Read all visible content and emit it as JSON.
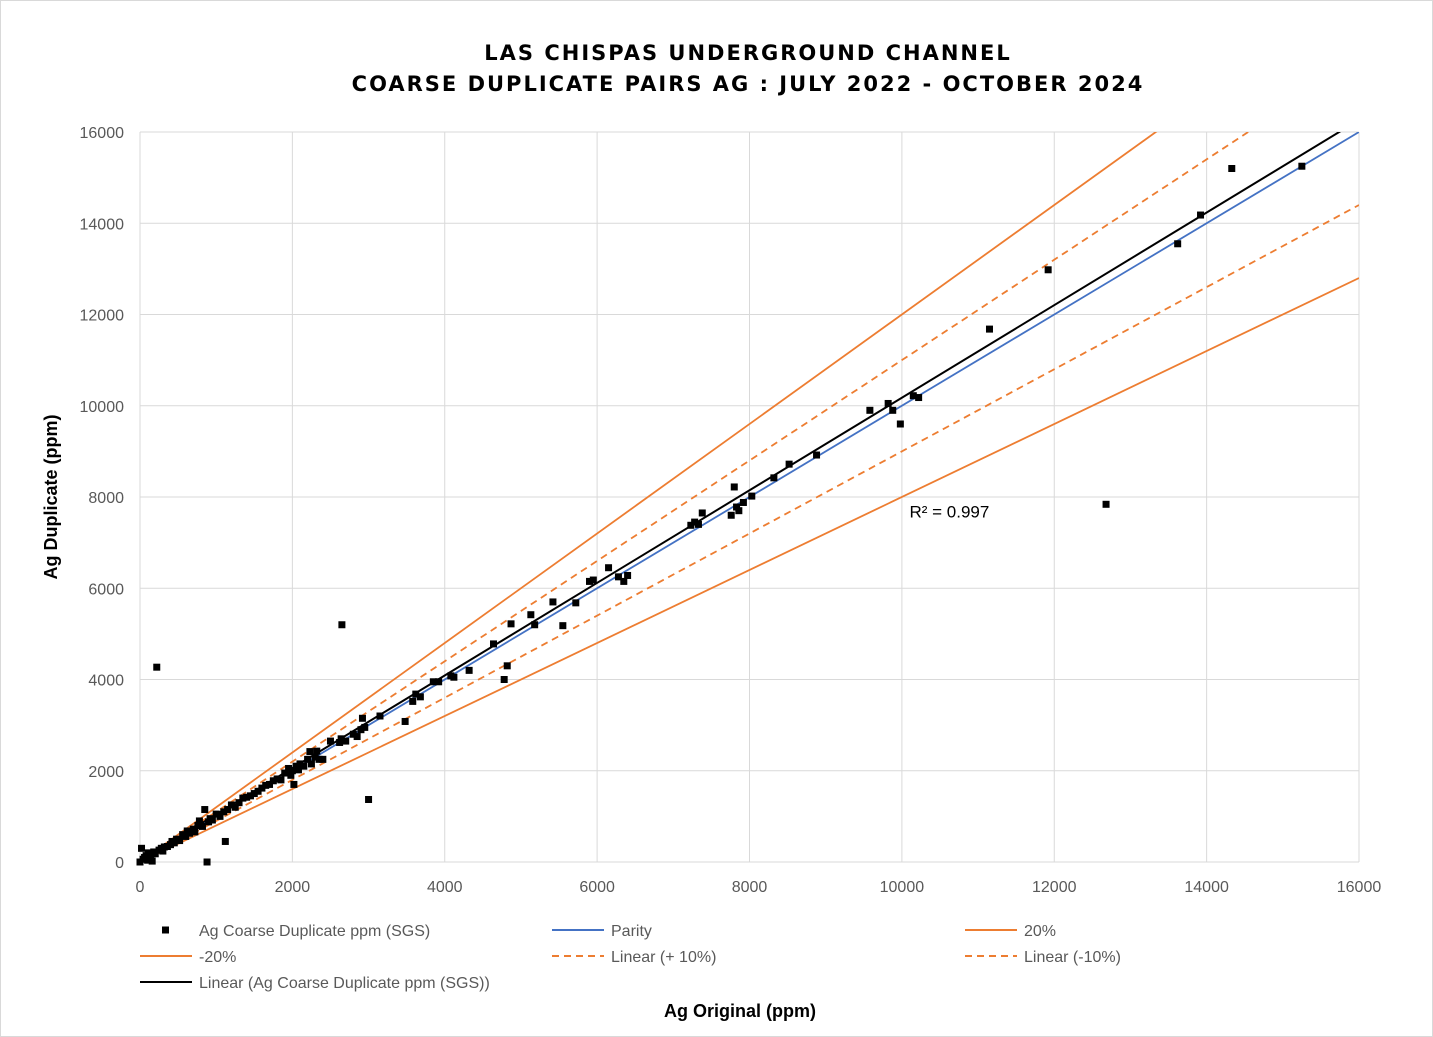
{
  "chart_data": {
    "type": "scatter",
    "title": [
      "LAS CHISPAS UNDERGROUND CHANNEL",
      "COARSE DUPLICATE PAIRS AG : JULY 2022 - OCTOBER 2024"
    ],
    "xlabel": "Ag Original (ppm)",
    "ylabel": "Ag Duplicate (ppm)",
    "xlim": [
      0,
      16000
    ],
    "ylim": [
      0,
      16000
    ],
    "xticks": [
      "0",
      "2000",
      "4000",
      "6000",
      "8000",
      "10000",
      "12000",
      "14000",
      "16000"
    ],
    "yticks": [
      "0",
      "2000",
      "4000",
      "6000",
      "8000",
      "10000",
      "12000",
      "14000",
      "16000"
    ],
    "grid": true,
    "annotation": {
      "text": "R² = 0.997",
      "x": 10100,
      "y": 7550
    },
    "series": [
      {
        "name": "Ag Coarse Duplicate ppm (SGS)",
        "kind": "scatter",
        "color": "#000000",
        "points": [
          [
            0,
            0
          ],
          [
            20,
            300
          ],
          [
            40,
            60
          ],
          [
            60,
            100
          ],
          [
            80,
            140
          ],
          [
            100,
            40
          ],
          [
            110,
            200
          ],
          [
            130,
            110
          ],
          [
            140,
            160
          ],
          [
            160,
            20
          ],
          [
            180,
            220
          ],
          [
            200,
            180
          ],
          [
            220,
            4270
          ],
          [
            250,
            260
          ],
          [
            280,
            300
          ],
          [
            300,
            240
          ],
          [
            320,
            330
          ],
          [
            360,
            340
          ],
          [
            400,
            380
          ],
          [
            420,
            450
          ],
          [
            450,
            420
          ],
          [
            480,
            500
          ],
          [
            520,
            470
          ],
          [
            560,
            600
          ],
          [
            600,
            560
          ],
          [
            620,
            680
          ],
          [
            650,
            630
          ],
          [
            700,
            720
          ],
          [
            720,
            660
          ],
          [
            760,
            800
          ],
          [
            780,
            900
          ],
          [
            820,
            780
          ],
          [
            850,
            1150
          ],
          [
            880,
            0
          ],
          [
            900,
            880
          ],
          [
            920,
            950
          ],
          [
            950,
            920
          ],
          [
            1000,
            1050
          ],
          [
            1050,
            1000
          ],
          [
            1100,
            1100
          ],
          [
            1120,
            450
          ],
          [
            1150,
            1150
          ],
          [
            1200,
            1250
          ],
          [
            1250,
            1200
          ],
          [
            1300,
            1300
          ],
          [
            1350,
            1400
          ],
          [
            1400,
            1420
          ],
          [
            1450,
            1450
          ],
          [
            1500,
            1500
          ],
          [
            1550,
            1550
          ],
          [
            1600,
            1620
          ],
          [
            1650,
            1680
          ],
          [
            1700,
            1700
          ],
          [
            1750,
            1780
          ],
          [
            1800,
            1820
          ],
          [
            1850,
            1800
          ],
          [
            1900,
            1950
          ],
          [
            1950,
            2050
          ],
          [
            1980,
            1900
          ],
          [
            2000,
            2000
          ],
          [
            2020,
            1700
          ],
          [
            2050,
            2100
          ],
          [
            2080,
            2020
          ],
          [
            2100,
            2150
          ],
          [
            2150,
            2100
          ],
          [
            2200,
            2250
          ],
          [
            2230,
            2420
          ],
          [
            2250,
            2150
          ],
          [
            2300,
            2300
          ],
          [
            2320,
            2430
          ],
          [
            2350,
            2250
          ],
          [
            2400,
            2250
          ],
          [
            2500,
            2650
          ],
          [
            2620,
            2620
          ],
          [
            2640,
            2700
          ],
          [
            2650,
            5200
          ],
          [
            2700,
            2650
          ],
          [
            2800,
            2800
          ],
          [
            2850,
            2750
          ],
          [
            2900,
            2900
          ],
          [
            2920,
            3150
          ],
          [
            2950,
            2950
          ],
          [
            3000,
            1370
          ],
          [
            3150,
            3200
          ],
          [
            3480,
            3080
          ],
          [
            3580,
            3520
          ],
          [
            3620,
            3680
          ],
          [
            3680,
            3620
          ],
          [
            3850,
            3950
          ],
          [
            3920,
            3950
          ],
          [
            4080,
            4080
          ],
          [
            4120,
            4050
          ],
          [
            4320,
            4200
          ],
          [
            4640,
            4780
          ],
          [
            4780,
            4000
          ],
          [
            4820,
            4300
          ],
          [
            4870,
            5220
          ],
          [
            5130,
            5420
          ],
          [
            5180,
            5200
          ],
          [
            5420,
            5700
          ],
          [
            5550,
            5180
          ],
          [
            5720,
            5680
          ],
          [
            5900,
            6150
          ],
          [
            5950,
            6180
          ],
          [
            6150,
            6450
          ],
          [
            6280,
            6250
          ],
          [
            6350,
            6150
          ],
          [
            6400,
            6280
          ],
          [
            7230,
            7380
          ],
          [
            7280,
            7450
          ],
          [
            7330,
            7400
          ],
          [
            7380,
            7650
          ],
          [
            7760,
            7600
          ],
          [
            7800,
            8220
          ],
          [
            7830,
            7780
          ],
          [
            7860,
            7700
          ],
          [
            7920,
            7880
          ],
          [
            8030,
            8020
          ],
          [
            8320,
            8420
          ],
          [
            8520,
            8720
          ],
          [
            8880,
            8920
          ],
          [
            9580,
            9900
          ],
          [
            9820,
            10050
          ],
          [
            9880,
            9900
          ],
          [
            9980,
            9600
          ],
          [
            10150,
            10220
          ],
          [
            10220,
            10180
          ],
          [
            11150,
            11680
          ],
          [
            11920,
            12980
          ],
          [
            12680,
            7840
          ],
          [
            13620,
            13550
          ],
          [
            13920,
            14180
          ],
          [
            14330,
            15200
          ],
          [
            15250,
            15250
          ]
        ]
      },
      {
        "name": "Parity",
        "kind": "line",
        "color": "#4472c4",
        "dash": false,
        "slope": 1.0,
        "intercept": 0
      },
      {
        "name": "20%",
        "kind": "line",
        "color": "#ed7d31",
        "dash": false,
        "slope": 1.2,
        "intercept": 0
      },
      {
        "name": "-20%",
        "kind": "line",
        "color": "#ed7d31",
        "dash": false,
        "slope": 0.8,
        "intercept": 0
      },
      {
        "name": "Linear (+ 10%)",
        "kind": "line",
        "color": "#ed7d31",
        "dash": true,
        "slope": 1.1,
        "intercept": 0
      },
      {
        "name": "Linear (-10%)",
        "kind": "line",
        "color": "#ed7d31",
        "dash": true,
        "slope": 0.9,
        "intercept": 0
      },
      {
        "name": "Linear (Ag Coarse Duplicate ppm (SGS))",
        "kind": "line",
        "color": "#000000",
        "dash": false,
        "slope": 1.0146,
        "intercept": 30
      }
    ]
  }
}
